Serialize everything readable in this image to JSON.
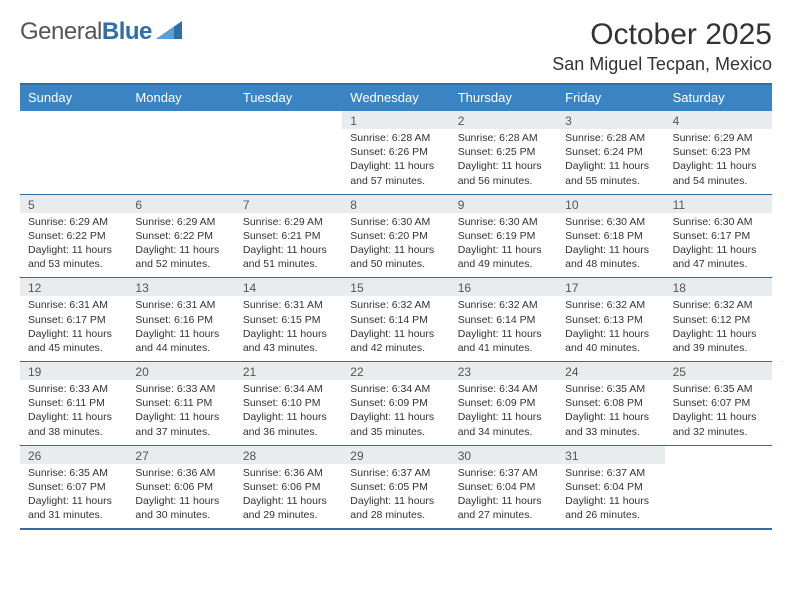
{
  "logo": {
    "text1": "General",
    "text2": "Blue"
  },
  "header": {
    "month_title": "October 2025",
    "location": "San Miguel Tecpan, Mexico"
  },
  "colors": {
    "header_bg": "#3b84c4",
    "header_border": "#2f6fa7",
    "daynum_bg": "#e9ecef",
    "text": "#333333"
  },
  "day_names": [
    "Sunday",
    "Monday",
    "Tuesday",
    "Wednesday",
    "Thursday",
    "Friday",
    "Saturday"
  ],
  "weeks": [
    [
      {
        "n": "",
        "sr": "",
        "ss": "",
        "dl": ""
      },
      {
        "n": "",
        "sr": "",
        "ss": "",
        "dl": ""
      },
      {
        "n": "",
        "sr": "",
        "ss": "",
        "dl": ""
      },
      {
        "n": "1",
        "sr": "Sunrise: 6:28 AM",
        "ss": "Sunset: 6:26 PM",
        "dl": "Daylight: 11 hours and 57 minutes."
      },
      {
        "n": "2",
        "sr": "Sunrise: 6:28 AM",
        "ss": "Sunset: 6:25 PM",
        "dl": "Daylight: 11 hours and 56 minutes."
      },
      {
        "n": "3",
        "sr": "Sunrise: 6:28 AM",
        "ss": "Sunset: 6:24 PM",
        "dl": "Daylight: 11 hours and 55 minutes."
      },
      {
        "n": "4",
        "sr": "Sunrise: 6:29 AM",
        "ss": "Sunset: 6:23 PM",
        "dl": "Daylight: 11 hours and 54 minutes."
      }
    ],
    [
      {
        "n": "5",
        "sr": "Sunrise: 6:29 AM",
        "ss": "Sunset: 6:22 PM",
        "dl": "Daylight: 11 hours and 53 minutes."
      },
      {
        "n": "6",
        "sr": "Sunrise: 6:29 AM",
        "ss": "Sunset: 6:22 PM",
        "dl": "Daylight: 11 hours and 52 minutes."
      },
      {
        "n": "7",
        "sr": "Sunrise: 6:29 AM",
        "ss": "Sunset: 6:21 PM",
        "dl": "Daylight: 11 hours and 51 minutes."
      },
      {
        "n": "8",
        "sr": "Sunrise: 6:30 AM",
        "ss": "Sunset: 6:20 PM",
        "dl": "Daylight: 11 hours and 50 minutes."
      },
      {
        "n": "9",
        "sr": "Sunrise: 6:30 AM",
        "ss": "Sunset: 6:19 PM",
        "dl": "Daylight: 11 hours and 49 minutes."
      },
      {
        "n": "10",
        "sr": "Sunrise: 6:30 AM",
        "ss": "Sunset: 6:18 PM",
        "dl": "Daylight: 11 hours and 48 minutes."
      },
      {
        "n": "11",
        "sr": "Sunrise: 6:30 AM",
        "ss": "Sunset: 6:17 PM",
        "dl": "Daylight: 11 hours and 47 minutes."
      }
    ],
    [
      {
        "n": "12",
        "sr": "Sunrise: 6:31 AM",
        "ss": "Sunset: 6:17 PM",
        "dl": "Daylight: 11 hours and 45 minutes."
      },
      {
        "n": "13",
        "sr": "Sunrise: 6:31 AM",
        "ss": "Sunset: 6:16 PM",
        "dl": "Daylight: 11 hours and 44 minutes."
      },
      {
        "n": "14",
        "sr": "Sunrise: 6:31 AM",
        "ss": "Sunset: 6:15 PM",
        "dl": "Daylight: 11 hours and 43 minutes."
      },
      {
        "n": "15",
        "sr": "Sunrise: 6:32 AM",
        "ss": "Sunset: 6:14 PM",
        "dl": "Daylight: 11 hours and 42 minutes."
      },
      {
        "n": "16",
        "sr": "Sunrise: 6:32 AM",
        "ss": "Sunset: 6:14 PM",
        "dl": "Daylight: 11 hours and 41 minutes."
      },
      {
        "n": "17",
        "sr": "Sunrise: 6:32 AM",
        "ss": "Sunset: 6:13 PM",
        "dl": "Daylight: 11 hours and 40 minutes."
      },
      {
        "n": "18",
        "sr": "Sunrise: 6:32 AM",
        "ss": "Sunset: 6:12 PM",
        "dl": "Daylight: 11 hours and 39 minutes."
      }
    ],
    [
      {
        "n": "19",
        "sr": "Sunrise: 6:33 AM",
        "ss": "Sunset: 6:11 PM",
        "dl": "Daylight: 11 hours and 38 minutes."
      },
      {
        "n": "20",
        "sr": "Sunrise: 6:33 AM",
        "ss": "Sunset: 6:11 PM",
        "dl": "Daylight: 11 hours and 37 minutes."
      },
      {
        "n": "21",
        "sr": "Sunrise: 6:34 AM",
        "ss": "Sunset: 6:10 PM",
        "dl": "Daylight: 11 hours and 36 minutes."
      },
      {
        "n": "22",
        "sr": "Sunrise: 6:34 AM",
        "ss": "Sunset: 6:09 PM",
        "dl": "Daylight: 11 hours and 35 minutes."
      },
      {
        "n": "23",
        "sr": "Sunrise: 6:34 AM",
        "ss": "Sunset: 6:09 PM",
        "dl": "Daylight: 11 hours and 34 minutes."
      },
      {
        "n": "24",
        "sr": "Sunrise: 6:35 AM",
        "ss": "Sunset: 6:08 PM",
        "dl": "Daylight: 11 hours and 33 minutes."
      },
      {
        "n": "25",
        "sr": "Sunrise: 6:35 AM",
        "ss": "Sunset: 6:07 PM",
        "dl": "Daylight: 11 hours and 32 minutes."
      }
    ],
    [
      {
        "n": "26",
        "sr": "Sunrise: 6:35 AM",
        "ss": "Sunset: 6:07 PM",
        "dl": "Daylight: 11 hours and 31 minutes."
      },
      {
        "n": "27",
        "sr": "Sunrise: 6:36 AM",
        "ss": "Sunset: 6:06 PM",
        "dl": "Daylight: 11 hours and 30 minutes."
      },
      {
        "n": "28",
        "sr": "Sunrise: 6:36 AM",
        "ss": "Sunset: 6:06 PM",
        "dl": "Daylight: 11 hours and 29 minutes."
      },
      {
        "n": "29",
        "sr": "Sunrise: 6:37 AM",
        "ss": "Sunset: 6:05 PM",
        "dl": "Daylight: 11 hours and 28 minutes."
      },
      {
        "n": "30",
        "sr": "Sunrise: 6:37 AM",
        "ss": "Sunset: 6:04 PM",
        "dl": "Daylight: 11 hours and 27 minutes."
      },
      {
        "n": "31",
        "sr": "Sunrise: 6:37 AM",
        "ss": "Sunset: 6:04 PM",
        "dl": "Daylight: 11 hours and 26 minutes."
      },
      {
        "n": "",
        "sr": "",
        "ss": "",
        "dl": ""
      }
    ]
  ]
}
